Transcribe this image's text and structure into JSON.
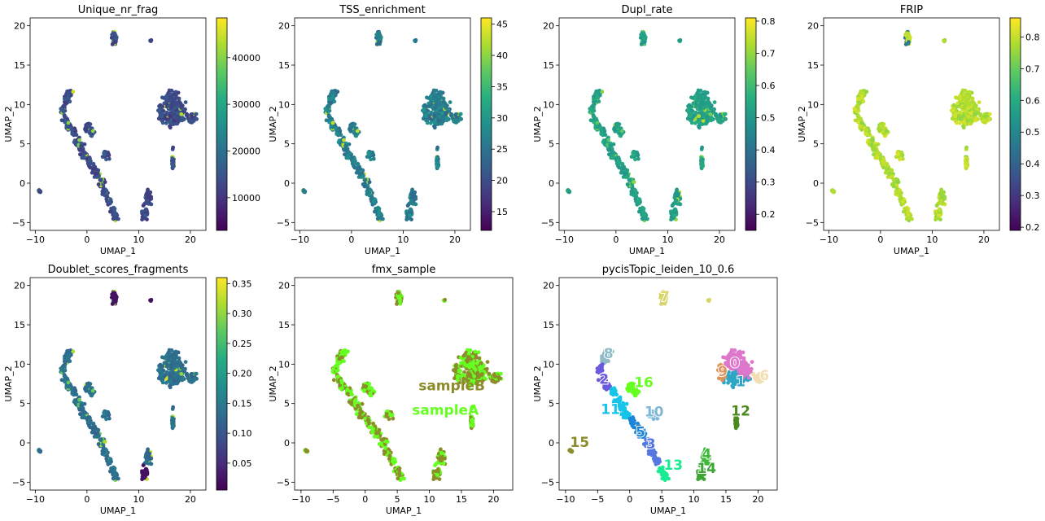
{
  "figure": {
    "point_size": 2.4,
    "chart_data": [
      {
        "id": "unique",
        "type": "scatter",
        "title": "Unique_nr_frag",
        "xlabel": "UMAP_1",
        "ylabel": "UMAP_2",
        "xlim": [
          -11,
          23
        ],
        "ylim": [
          -6,
          21
        ],
        "xticks": [
          -10,
          0,
          10,
          20
        ],
        "yticks": [
          -5,
          0,
          5,
          10,
          15,
          20
        ],
        "colormap": "viridis",
        "colorbar": {
          "range": [
            3000,
            48500
          ],
          "ticks": [
            10000,
            20000,
            30000,
            40000
          ]
        },
        "colorbar_tick_labels": [
          "10000",
          "20000",
          "30000",
          "40000"
        ],
        "xtick_labels": [
          "−10",
          "0",
          "10",
          "20"
        ],
        "ytick_labels": [
          "−5",
          "0",
          "5",
          "10",
          "15",
          "20"
        ]
      },
      {
        "id": "tss",
        "type": "scatter",
        "title": "TSS_enrichment",
        "xlabel": "UMAP_1",
        "ylabel": "UMAP_2",
        "xlim": [
          -11,
          23
        ],
        "ylim": [
          -6,
          21
        ],
        "xticks": [
          -10,
          0,
          10,
          20
        ],
        "yticks": [
          -5,
          0,
          5,
          10,
          15,
          20
        ],
        "colormap": "viridis",
        "colorbar": {
          "range": [
            12,
            46
          ],
          "ticks": [
            15,
            20,
            25,
            30,
            35,
            40,
            45
          ]
        },
        "colorbar_tick_labels": [
          "15",
          "20",
          "25",
          "30",
          "35",
          "40",
          "45"
        ],
        "xtick_labels": [
          "−10",
          "0",
          "10",
          "20"
        ],
        "ytick_labels": [
          "−5",
          "0",
          "5",
          "10",
          "15",
          "20"
        ]
      },
      {
        "id": "dupl",
        "type": "scatter",
        "title": "Dupl_rate",
        "xlabel": "UMAP_1",
        "ylabel": "UMAP_2",
        "xlim": [
          -11,
          23
        ],
        "ylim": [
          -6,
          21
        ],
        "xticks": [
          -10,
          0,
          10,
          20
        ],
        "yticks": [
          -5,
          0,
          5,
          10,
          15,
          20
        ],
        "colormap": "viridis",
        "colorbar": {
          "range": [
            0.15,
            0.81
          ],
          "ticks": [
            0.2,
            0.3,
            0.4,
            0.5,
            0.6,
            0.7,
            0.8
          ]
        },
        "colorbar_tick_labels": [
          "0.2",
          "0.3",
          "0.4",
          "0.5",
          "0.6",
          "0.7",
          "0.8"
        ],
        "xtick_labels": [
          "−10",
          "0",
          "10",
          "20"
        ],
        "ytick_labels": [
          "−5",
          "0",
          "5",
          "10",
          "15",
          "20"
        ]
      },
      {
        "id": "frip",
        "type": "scatter",
        "title": "FRIP",
        "xlabel": "UMAP_1",
        "ylabel": "UMAP_2",
        "xlim": [
          -11,
          23
        ],
        "ylim": [
          -6,
          21
        ],
        "xticks": [
          -10,
          0,
          10,
          20
        ],
        "yticks": [
          -5,
          0,
          5,
          10,
          15,
          20
        ],
        "colormap": "viridis",
        "colorbar": {
          "range": [
            0.19,
            0.86
          ],
          "ticks": [
            0.2,
            0.3,
            0.4,
            0.5,
            0.6,
            0.7,
            0.8
          ]
        },
        "colorbar_tick_labels": [
          "0.2",
          "0.3",
          "0.4",
          "0.5",
          "0.6",
          "0.7",
          "0.8"
        ],
        "xtick_labels": [
          "−10",
          "0",
          "10",
          "20"
        ],
        "ytick_labels": [
          "−5",
          "0",
          "5",
          "10",
          "15",
          "20"
        ]
      },
      {
        "id": "doublet",
        "type": "scatter",
        "title": "Doublet_scores_fragments",
        "xlabel": "UMAP_1",
        "ylabel": "UMAP_2",
        "xlim": [
          -11,
          23
        ],
        "ylim": [
          -6,
          21
        ],
        "xticks": [
          -10,
          0,
          10,
          20
        ],
        "yticks": [
          -5,
          0,
          5,
          10,
          15,
          20
        ],
        "colormap": "viridis",
        "colorbar": {
          "range": [
            0.005,
            0.36
          ],
          "ticks": [
            0.05,
            0.1,
            0.15,
            0.2,
            0.25,
            0.3,
            0.35
          ]
        },
        "colorbar_tick_labels": [
          "0.05",
          "0.10",
          "0.15",
          "0.20",
          "0.25",
          "0.30",
          "0.35"
        ],
        "xtick_labels": [
          "−10",
          "0",
          "10",
          "20"
        ],
        "ytick_labels": [
          "−5",
          "0",
          "5",
          "10",
          "15",
          "20"
        ]
      },
      {
        "id": "sample",
        "type": "scatter",
        "title": "fmx_sample",
        "xlabel": "UMAP_1",
        "ylabel": "UMAP_2",
        "xlim": [
          -11,
          23
        ],
        "ylim": [
          -6,
          21
        ],
        "xticks": [
          -10,
          -5,
          0,
          5,
          10,
          15,
          20
        ],
        "yticks": [
          -5,
          0,
          5,
          10,
          15,
          20
        ],
        "xtick_labels": [
          "−10",
          "−5",
          "0",
          "5",
          "10",
          "15",
          "20"
        ],
        "ytick_labels": [
          "−5",
          "0",
          "5",
          "10",
          "15",
          "20"
        ],
        "categories": [
          "sampleA",
          "sampleB"
        ],
        "category_colors": {
          "sampleA": "#66ff22",
          "sampleB": "#8c8c2a"
        },
        "labels": [
          {
            "text": "sampleB",
            "x": 13.5,
            "y": 7.3,
            "color": "#8c8c2a"
          },
          {
            "text": "sampleA",
            "x": 12.5,
            "y": 4.2,
            "color": "#66ff22"
          }
        ]
      },
      {
        "id": "cluster",
        "type": "scatter",
        "title": "pycisTopic_leiden_10_0.6",
        "xlabel": "UMAP_1",
        "ylabel": "UMAP_2",
        "xlim": [
          -11,
          23
        ],
        "ylim": [
          -6,
          21
        ],
        "xticks": [
          -10,
          -5,
          0,
          5,
          10,
          15,
          20
        ],
        "yticks": [
          -5,
          0,
          5,
          10,
          15,
          20
        ],
        "xtick_labels": [
          "−10",
          "−5",
          "0",
          "5",
          "10",
          "15",
          "20"
        ],
        "ytick_labels": [
          "−5",
          "0",
          "5",
          "10",
          "15",
          "20"
        ],
        "categories": [
          "0",
          "1",
          "2",
          "3",
          "4",
          "5",
          "6",
          "7",
          "8",
          "9",
          "10",
          "11",
          "12",
          "13",
          "14",
          "15",
          "16"
        ],
        "category_colors": {
          "0": "#dd77cc",
          "1": "#2ea6c6",
          "2": "#6a5adc",
          "3": "#5577e0",
          "4": "#3fb83a",
          "5": "#1d85d9",
          "6": "#f2dfb2",
          "7": "#d8d56a",
          "8": "#8fbac6",
          "9": "#e0935a",
          "10": "#7fb7d6",
          "11": "#16c4e8",
          "12": "#4b8a1e",
          "13": "#19eb93",
          "14": "#3ca533",
          "15": "#8c8c2a",
          "16": "#66ff22"
        },
        "labels": [
          {
            "text": "0",
            "x": 16.4,
            "y": 10.2
          },
          {
            "text": "1",
            "x": 17.3,
            "y": 7.8
          },
          {
            "text": "2",
            "x": -4.0,
            "y": 8.1
          },
          {
            "text": "3",
            "x": 3.3,
            "y": -0.1
          },
          {
            "text": "4",
            "x": 12.0,
            "y": -1.4
          },
          {
            "text": "5",
            "x": 1.7,
            "y": 1.4
          },
          {
            "text": "6",
            "x": 21.0,
            "y": 8.6
          },
          {
            "text": "7",
            "x": 5.5,
            "y": 18.6
          },
          {
            "text": "8",
            "x": -3.3,
            "y": 11.4
          },
          {
            "text": "9",
            "x": 14.5,
            "y": 9.1
          },
          {
            "text": "10",
            "x": 3.8,
            "y": 4.0
          },
          {
            "text": "11",
            "x": -3.0,
            "y": 4.3
          },
          {
            "text": "12",
            "x": 17.3,
            "y": 4.1
          },
          {
            "text": "13",
            "x": 6.8,
            "y": -2.8
          },
          {
            "text": "14",
            "x": 12.0,
            "y": -3.2
          },
          {
            "text": "15",
            "x": -7.8,
            "y": 0.1
          },
          {
            "text": "16",
            "x": 2.2,
            "y": 7.7
          }
        ]
      }
    ]
  }
}
